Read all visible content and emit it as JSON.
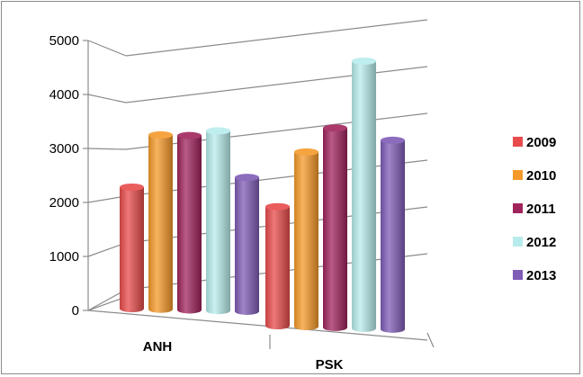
{
  "chart_data": {
    "type": "bar",
    "title": "",
    "xlabel": "",
    "ylabel": "",
    "categories": [
      "ANH",
      "PSK"
    ],
    "ylim": [
      0,
      5000
    ],
    "yticks": [
      "0",
      "1000",
      "2000",
      "3000",
      "4000",
      "5000"
    ],
    "grid": true,
    "legend": "right",
    "series": [
      {
        "name": "2009",
        "values": [
          2250,
          2250
        ],
        "color": "#e84b4b"
      },
      {
        "name": "2010",
        "values": [
          3230,
          3300
        ],
        "color": "#f59a2a"
      },
      {
        "name": "2011",
        "values": [
          3230,
          3770
        ],
        "color": "#a0245c"
      },
      {
        "name": "2012",
        "values": [
          3330,
          5050
        ],
        "color": "#b8ecec"
      },
      {
        "name": "2013",
        "values": [
          2480,
          3570
        ],
        "color": "#7f5cb6"
      }
    ]
  }
}
